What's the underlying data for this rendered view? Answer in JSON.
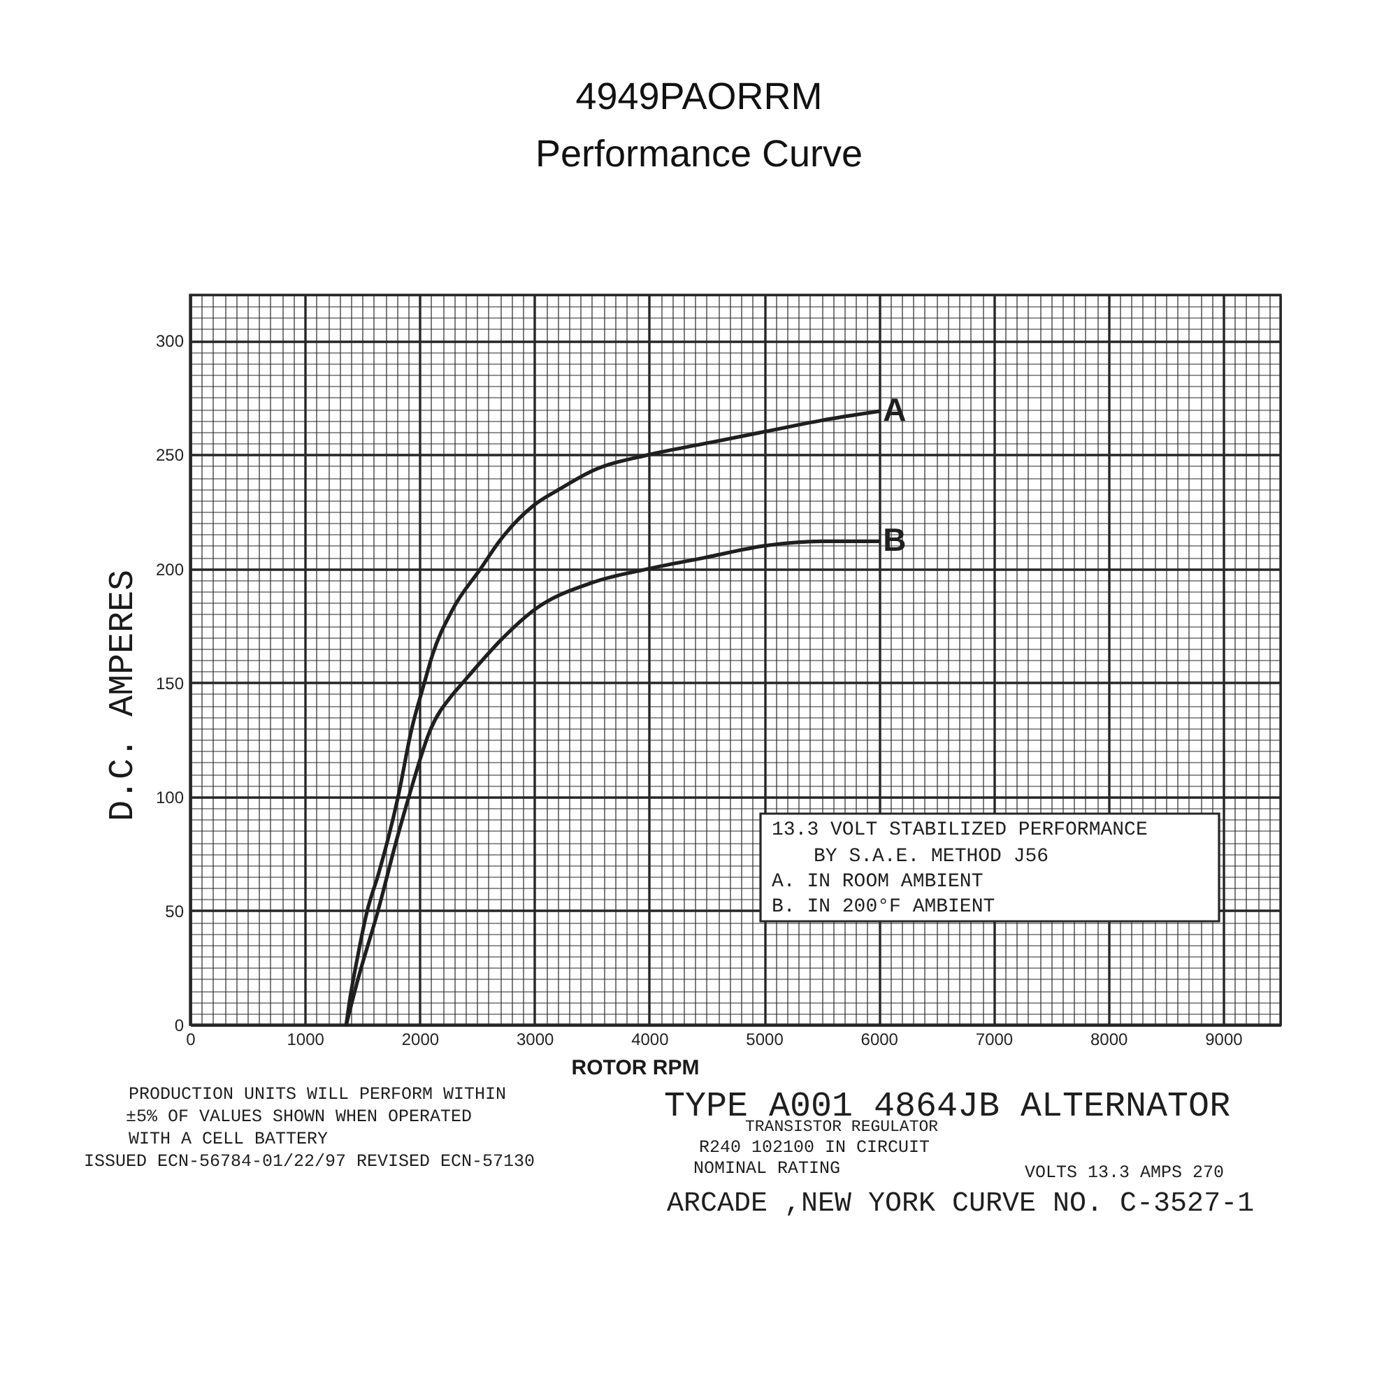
{
  "chart_data": {
    "type": "line",
    "title": "4949PAORRM",
    "subtitle": "Performance Curve",
    "xlabel": "ROTOR RPM",
    "ylabel": "D.C. AMPERES",
    "xlim": [
      0,
      9500
    ],
    "ylim": [
      0,
      320
    ],
    "xticks": [
      0,
      1000,
      2000,
      3000,
      4000,
      5000,
      6000,
      7000,
      8000,
      9000
    ],
    "yticks": [
      0,
      50,
      100,
      150,
      200,
      250,
      300
    ],
    "grid": true,
    "line_style": "solid",
    "series": [
      {
        "name": "A",
        "color": "#1f1f1f",
        "x": [
          1360,
          1385,
          1460,
          1543,
          1640,
          1727,
          1812,
          1927,
          2041,
          2110,
          2286,
          2531,
          2694,
          3000,
          3224,
          3510,
          4000,
          4500,
          5000,
          5500,
          6000
        ],
        "values": [
          0,
          9,
          30,
          50,
          66,
          82,
          100,
          129,
          150,
          162,
          182,
          200,
          212,
          228,
          235,
          243,
          250,
          255,
          260,
          265,
          269
        ]
      },
      {
        "name": "B",
        "color": "#1f1f1f",
        "x": [
          1360,
          1457,
          1637,
          1804,
          1906,
          2090,
          2290,
          2376,
          2531,
          2694,
          3000,
          3510,
          4000,
          4500,
          5000,
          5500,
          6000
        ],
        "values": [
          0,
          19,
          50,
          82,
          100,
          129,
          145,
          150,
          159,
          168,
          182,
          194,
          200,
          205,
          210,
          212,
          212
        ]
      }
    ],
    "annotations": [
      "13.3 VOLT STABILIZED PERFORMANCE",
      "BY S.A.E. METHOD  J56",
      "A. IN ROOM  AMBIENT",
      "B. IN 200°F  AMBIENT",
      "PRODUCTION UNITS WILL PERFORM WITHIN",
      "±5% OF VALUES SHOWN WHEN OPERATED",
      "WITH A      CELL BATTERY",
      "ISSUED ECN-56784-01/22/97   REVISED ECN-57130",
      "TYPE  A001 4864JB ALTERNATOR",
      "TRANSISTOR REGULATOR",
      "R240 102100  IN CIRCUIT",
      "NOMINAL RATING",
      "VOLTS 13.3   AMPS 270",
      "ARCADE ,NEW YORK  CURVE NO. C-3527-1"
    ]
  }
}
